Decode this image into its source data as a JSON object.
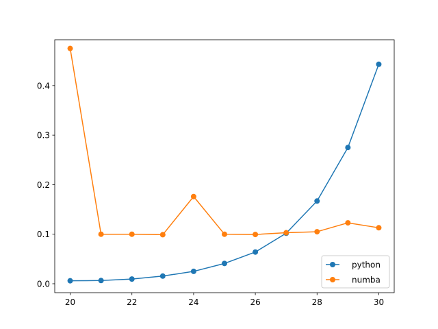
{
  "chart_data": {
    "type": "line",
    "title": "",
    "xlabel": "",
    "ylabel": "",
    "x": [
      20,
      21,
      22,
      23,
      24,
      25,
      26,
      27,
      28,
      29,
      30
    ],
    "xlim": [
      19.5,
      30.5
    ],
    "ylim": [
      -0.018,
      0.4925
    ],
    "xticks": [
      "20",
      "22",
      "24",
      "26",
      "28",
      "30"
    ],
    "yticks": [
      "0.0",
      "0.1",
      "0.2",
      "0.3",
      "0.4"
    ],
    "grid": false,
    "legend_position": "lower-right",
    "series": [
      {
        "name": "python",
        "color": "#1f77b4",
        "marker": "circle",
        "values": [
          0.006,
          0.0065,
          0.0095,
          0.0155,
          0.025,
          0.041,
          0.064,
          0.102,
          0.167,
          0.275,
          0.443
        ]
      },
      {
        "name": "numba",
        "color": "#ff7f0e",
        "marker": "circle",
        "values": [
          0.475,
          0.1,
          0.1,
          0.099,
          0.176,
          0.1,
          0.0995,
          0.103,
          0.105,
          0.123,
          0.113
        ]
      }
    ]
  }
}
